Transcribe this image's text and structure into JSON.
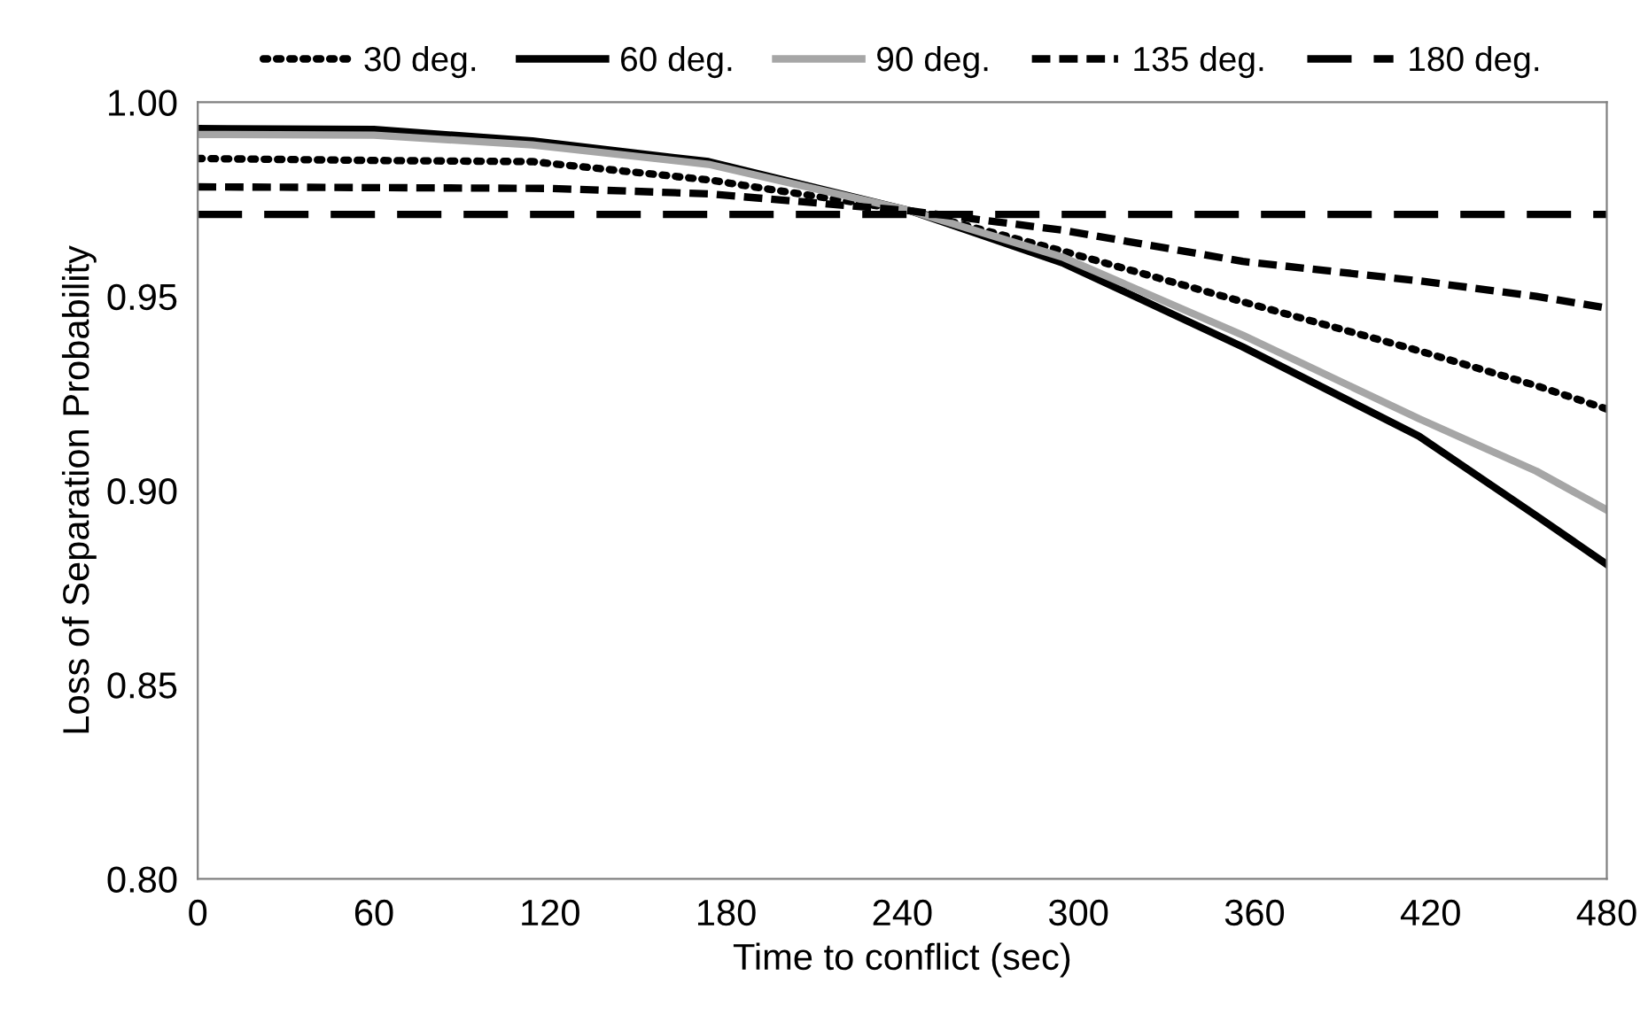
{
  "chart_data": {
    "type": "line",
    "xlabel": "Time to conflict (sec)",
    "ylabel": "Loss of Separation Probability",
    "xlim": [
      0,
      480
    ],
    "xticks": [
      0,
      60,
      120,
      180,
      240,
      300,
      360,
      420,
      480
    ],
    "ylim": [
      0.8,
      1.0
    ],
    "yticks": [
      {
        "value": 0.8,
        "label": "0.80"
      },
      {
        "value": 0.85,
        "label": "0.85"
      },
      {
        "value": 0.9,
        "label": "0.90"
      },
      {
        "value": 0.95,
        "label": "0.95"
      },
      {
        "value": 1.0,
        "label": "1.00"
      }
    ],
    "grid": false,
    "legend": "top",
    "marker": "none",
    "series": [
      {
        "name": "30 deg.",
        "color": "#000000",
        "line_style": "dotted",
        "x": [
          0,
          60,
          114,
          174,
          243,
          295,
          356,
          416,
          456,
          480
        ],
        "values": [
          0.9855,
          0.985,
          0.9847,
          0.98,
          0.972,
          0.9616,
          0.9486,
          0.936,
          0.927,
          0.921
        ]
      },
      {
        "name": "60 deg.",
        "color": "#000000",
        "line_style": "solid",
        "x": [
          0,
          60,
          114,
          174,
          243,
          295,
          356,
          416,
          456,
          480
        ],
        "values": [
          0.9932,
          0.993,
          0.99,
          0.9847,
          0.972,
          0.9585,
          0.937,
          0.914,
          0.8935,
          0.881
        ]
      },
      {
        "name": "90 deg.",
        "color": "#a6a6a6",
        "line_style": "solid",
        "x": [
          0,
          60,
          114,
          174,
          243,
          295,
          356,
          416,
          456,
          480
        ],
        "values": [
          0.9917,
          0.9915,
          0.989,
          0.984,
          0.972,
          0.96,
          0.94,
          0.9185,
          0.905,
          0.895
        ]
      },
      {
        "name": "135 deg.",
        "color": "#000000",
        "line_style": "dashed",
        "x": [
          0,
          60,
          120,
          174,
          243,
          295,
          356,
          416,
          456,
          480
        ],
        "values": [
          0.9782,
          0.978,
          0.9778,
          0.9764,
          0.972,
          0.967,
          0.959,
          0.954,
          0.95,
          0.947
        ]
      },
      {
        "name": "180 deg.",
        "color": "#000000",
        "line_style": "dashed",
        "x": [
          0,
          480
        ],
        "values": [
          0.9711,
          0.9711
        ]
      }
    ]
  }
}
